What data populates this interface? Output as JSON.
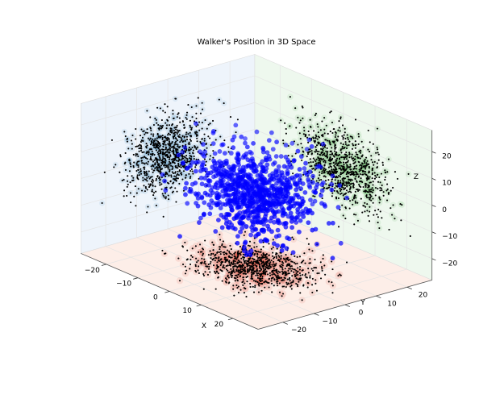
{
  "chart_data": {
    "type": "scatter",
    "projection": "3d",
    "title": "Walker's Position in 3D Space",
    "xlabel": "X",
    "ylabel": "Y",
    "zlabel": "Z",
    "xlim": [
      -28,
      28
    ],
    "ylim": [
      -28,
      28
    ],
    "zlim": [
      -28,
      28
    ],
    "xticks": [
      -20,
      -10,
      0,
      10,
      20
    ],
    "yticks": [
      -20,
      -10,
      0,
      10,
      20
    ],
    "zticks": [
      -20,
      -10,
      0,
      10,
      20
    ],
    "x_tick_labels": [
      "−20",
      "−10",
      "0",
      "10",
      "20"
    ],
    "y_tick_labels": [
      "−20",
      "−10",
      "0",
      "10",
      "20"
    ],
    "z_tick_labels": [
      "−20",
      "−10",
      "0",
      "10",
      "20"
    ],
    "grid": true,
    "series": [
      {
        "kind": "points-3d",
        "color": "#0000ff",
        "distribution": "normal",
        "center": [
          0,
          0,
          0
        ],
        "std": [
          7,
          7,
          7
        ],
        "count": 900
      },
      {
        "kind": "projection-xy",
        "plane_value_z": -28,
        "dot_color": "#000000",
        "density_colormap": "Reds",
        "count": 900
      },
      {
        "kind": "projection-yz",
        "plane_value_x": -28,
        "dot_color": "#000000",
        "density_colormap": "Blues",
        "count": 900
      },
      {
        "kind": "projection-xz",
        "plane_value_y": 28,
        "dot_color": "#000000",
        "density_colormap": "Greens",
        "count": 900
      }
    ],
    "colors": {
      "points": "#0000ff",
      "pane_left": "#eef4fb",
      "pane_back": "#eef8ee",
      "pane_floor": "#fdeee8",
      "hot_red": "#d7301f",
      "cool_blue": "#4a90c8",
      "leaf_green": "#5bb85b"
    }
  }
}
